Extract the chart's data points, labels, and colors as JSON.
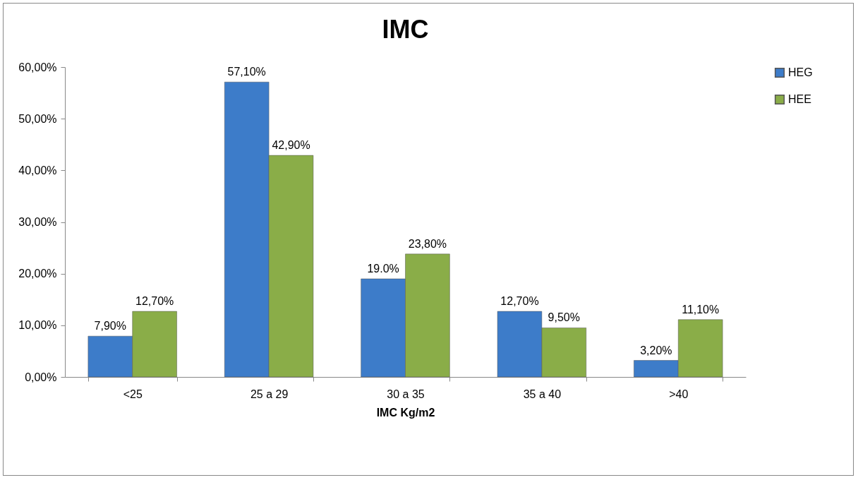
{
  "chart_data": {
    "type": "bar",
    "title": "IMC",
    "xlabel": "IMC Kg/m2",
    "categories": [
      "<25",
      "25 a 29",
      "30 a 35",
      "35 a 40",
      ">40"
    ],
    "series": [
      {
        "name": "HEG",
        "color": "#3d7cc9",
        "values": [
          7.9,
          57.1,
          19.0,
          12.7,
          3.2
        ],
        "value_labels": [
          "7,90%",
          "57,10%",
          "19.0%",
          "12,70%",
          "3,20%"
        ]
      },
      {
        "name": "HEE",
        "color": "#8aad48",
        "values": [
          12.7,
          42.9,
          23.8,
          9.5,
          11.1
        ],
        "value_labels": [
          "12,70%",
          "42,90%",
          "23,80%",
          "9,50%",
          "11,10%"
        ]
      }
    ],
    "ylim": [
      0,
      60
    ],
    "yticks": [
      {
        "value": 0,
        "label": "0,00%"
      },
      {
        "value": 10,
        "label": "10,00%"
      },
      {
        "value": 20,
        "label": "20,00%"
      },
      {
        "value": 30,
        "label": "30,00%"
      },
      {
        "value": 40,
        "label": "40,00%"
      },
      {
        "value": 50,
        "label": "50,00%"
      },
      {
        "value": 60,
        "label": "60,00%"
      }
    ],
    "legend": "right"
  }
}
